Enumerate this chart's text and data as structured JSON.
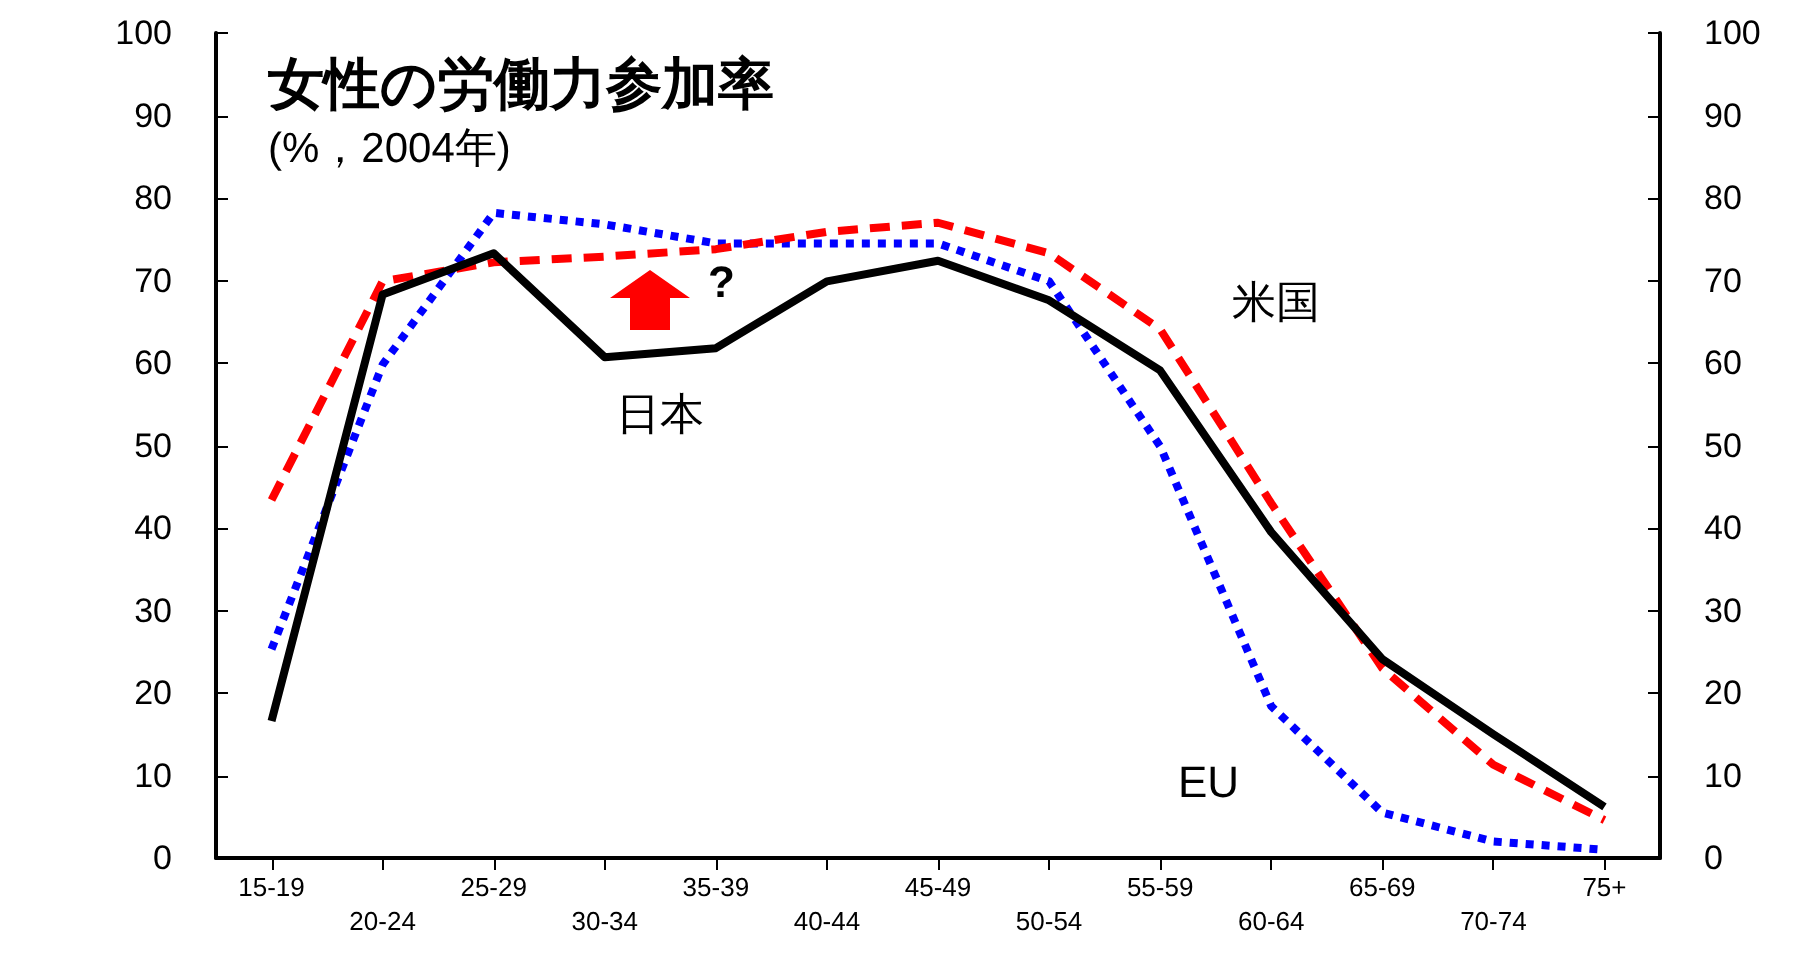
{
  "chart_data": {
    "type": "line",
    "title": "女性の労働力参加率",
    "subtitle": "(%，2004年)",
    "categories": [
      "15-19",
      "20-24",
      "25-29",
      "30-34",
      "35-39",
      "40-44",
      "45-49",
      "50-54",
      "55-59",
      "60-64",
      "65-69",
      "70-74",
      "75+"
    ],
    "series": [
      {
        "name": "日本",
        "color": "#000000",
        "line_style": "solid",
        "values": [
          16.6,
          68.3,
          73.3,
          60.7,
          61.8,
          69.9,
          72.4,
          67.6,
          59.1,
          39.5,
          24.1,
          15,
          6.2
        ]
      },
      {
        "name": "米国",
        "color": "#ff0000",
        "line_style": "dashed",
        "values": [
          43.4,
          69.9,
          72.2,
          72.9,
          73.8,
          75.9,
          77,
          73.3,
          64.1,
          43,
          23,
          11.3,
          4.6
        ]
      },
      {
        "name": "EU",
        "color": "#0000ff",
        "line_style": "dotted",
        "values": [
          25.3,
          59.8,
          78.2,
          76.8,
          74.5,
          74.5,
          74.5,
          69.9,
          49.9,
          18.4,
          5.5,
          2,
          1
        ]
      }
    ],
    "annotations": [
      "?"
    ],
    "ylim": [
      0,
      100
    ],
    "yticks": [
      0,
      10,
      20,
      30,
      40,
      50,
      60,
      70,
      80,
      90,
      100
    ],
    "y2lim": [
      0,
      100
    ],
    "y2ticks": [
      0,
      10,
      20,
      30,
      40,
      50,
      60,
      70,
      80,
      90,
      100
    ],
    "grid": false,
    "legend": false,
    "marker": "none"
  }
}
